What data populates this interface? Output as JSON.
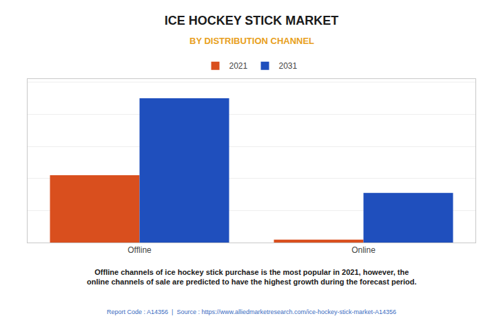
{
  "chart_data": {
    "type": "bar",
    "title": "ICE HOCKEY STICK MARKET",
    "subtitle": "BY DISTRIBUTION CHANNEL",
    "categories": [
      "Offline",
      "Online"
    ],
    "series": [
      {
        "name": "2021",
        "color": "#d94f1e",
        "values": [
          0.42,
          0.018
        ]
      },
      {
        "name": "2031",
        "color": "#1f4fbd",
        "values": [
          0.9,
          0.31
        ]
      }
    ],
    "ylim": [
      0,
      1.02
    ],
    "yticks": [
      0.2,
      0.4,
      0.6,
      0.8,
      1.0
    ],
    "grid": true,
    "legend": "top",
    "tick_labels": "x",
    "annotation": "Offline channels of ice hockey stick purchase is the most popular in 2021, however, the\nonline channels of sale are predicted to have the highest growth during the forecast period.",
    "footer": "Report Code : A14356  |  Source : https://www.alliedmarketresearch.com/ice-hockey-stick-market-A14356"
  }
}
